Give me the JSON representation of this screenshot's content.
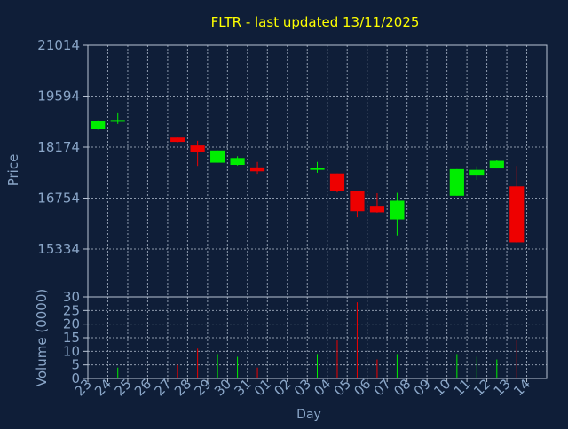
{
  "chart_data": {
    "type": "candlestick",
    "title": "FLTR - last updated 13/11/2025",
    "xlabel": "Day",
    "ylabel": "Price",
    "volume_label": "Volume (0000)",
    "price_ticks": [
      "21014",
      "19594",
      "18174",
      "16754",
      "15334"
    ],
    "price_tick_values": [
      21014,
      19594,
      18174,
      16754,
      15334
    ],
    "price_range": [
      14000,
      21014
    ],
    "volume_ticks": [
      "30",
      "25",
      "20",
      "15",
      "10",
      "5",
      "0"
    ],
    "volume_tick_values": [
      30,
      25,
      20,
      15,
      10,
      5,
      0
    ],
    "volume_range": [
      0,
      30
    ],
    "day_labels": [
      "23",
      "24",
      "25",
      "26",
      "27",
      "28",
      "29",
      "30",
      "31",
      "01",
      "02",
      "03",
      "04",
      "05",
      "06",
      "07",
      "08",
      "09",
      "10",
      "11",
      "12",
      "13",
      "14"
    ],
    "candles": [
      {
        "day": "23",
        "open": 18670,
        "high": 18920,
        "low": 18660,
        "close": 18900,
        "volume": 0
      },
      {
        "day": "24",
        "open": 18880,
        "high": 19140,
        "low": 18820,
        "close": 18930,
        "volume": 4
      },
      {
        "day": "27",
        "open": 18440,
        "high": 18440,
        "low": 18310,
        "close": 18320,
        "volume": 5
      },
      {
        "day": "28",
        "open": 18220,
        "high": 18350,
        "low": 17650,
        "close": 18050,
        "volume": 11
      },
      {
        "day": "29",
        "open": 17740,
        "high": 18080,
        "low": 17740,
        "close": 18080,
        "volume": 9
      },
      {
        "day": "30",
        "open": 17680,
        "high": 17920,
        "low": 17660,
        "close": 17870,
        "volume": 8
      },
      {
        "day": "31",
        "open": 17610,
        "high": 17760,
        "low": 17430,
        "close": 17500,
        "volume": 4
      },
      {
        "day": "03",
        "open": 17560,
        "high": 17760,
        "low": 17460,
        "close": 17590,
        "volume": 9
      },
      {
        "day": "04",
        "open": 17440,
        "high": 17440,
        "low": 16910,
        "close": 16940,
        "volume": 14
      },
      {
        "day": "05",
        "open": 16960,
        "high": 16960,
        "low": 16220,
        "close": 16390,
        "volume": 28
      },
      {
        "day": "06",
        "open": 16540,
        "high": 16890,
        "low": 16350,
        "close": 16360,
        "volume": 7
      },
      {
        "day": "07",
        "open": 16160,
        "high": 16900,
        "low": 15710,
        "close": 16680,
        "volume": 9
      },
      {
        "day": "10",
        "open": 16820,
        "high": 17560,
        "low": 16820,
        "close": 17560,
        "volume": 9
      },
      {
        "day": "11",
        "open": 17380,
        "high": 17640,
        "low": 17260,
        "close": 17540,
        "volume": 8
      },
      {
        "day": "12",
        "open": 17580,
        "high": 17820,
        "low": 17580,
        "close": 17790,
        "volume": 7
      },
      {
        "day": "13",
        "open": 17080,
        "high": 17650,
        "low": 15510,
        "close": 15520,
        "volume": 14
      }
    ],
    "up_color": "#00ee00",
    "down_color": "#ee0000",
    "background_color": "#0f1e38",
    "title_color": "#ffff00",
    "axis_text_color": "#8aa6c8",
    "grid": true
  }
}
